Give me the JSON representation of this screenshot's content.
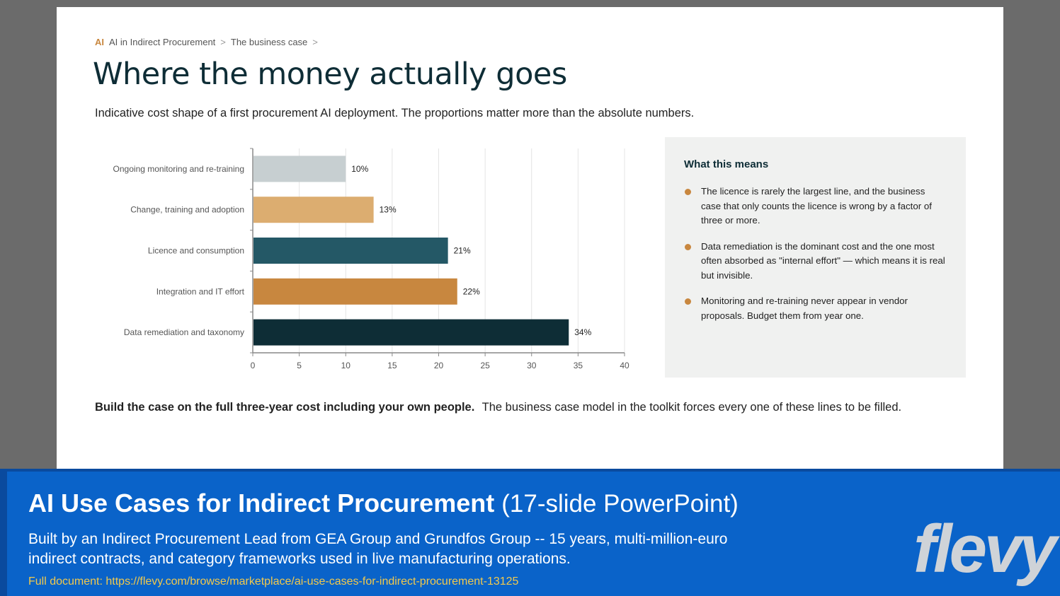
{
  "breadcrumb": {
    "tag": "AI",
    "items": [
      "AI in Indirect Procurement",
      "The business case"
    ],
    "separator": ">"
  },
  "title": "Where the money actually goes",
  "subtitle": "Indicative cost shape of a first procurement AI deployment. The proportions matter more than the absolute numbers.",
  "chart_data": {
    "type": "bar",
    "orientation": "horizontal",
    "categories": [
      "Ongoing monitoring and re-training",
      "Change, training and adoption",
      "Licence and consumption",
      "Integration and IT effort",
      "Data remediation and taxonomy"
    ],
    "values": [
      10,
      13,
      21,
      22,
      34
    ],
    "value_labels": [
      "10%",
      "13%",
      "21%",
      "22%",
      "34%"
    ],
    "colors": [
      "#c7cfd1",
      "#dcad70",
      "#245866",
      "#c8873f",
      "#0e2d36"
    ],
    "xlim": [
      0,
      40
    ],
    "xticks": [
      0,
      5,
      10,
      15,
      20,
      25,
      30,
      35,
      40
    ],
    "grid": true,
    "title": "",
    "xlabel": "",
    "ylabel": ""
  },
  "panel": {
    "title": "What this means",
    "bullets": [
      "The licence is rarely the largest line, and the business case that only counts the licence is wrong by a factor of three or more.",
      "Data remediation is the dominant cost and the one most often absorbed as \"internal effort\" — which means it is real but invisible.",
      "Monitoring and re-training never appear in vendor proposals. Budget them from year one."
    ]
  },
  "footnote": {
    "bold": "Build the case on the full three-year cost including your own people.",
    "text": "The business case model in the toolkit forces every one of these lines to be filled."
  },
  "banner": {
    "title_strong": "AI Use Cases for Indirect Procurement",
    "title_light": "(17-slide PowerPoint)",
    "description": "Built by an Indirect Procurement Lead from GEA Group and Grundfos Group -- 15 years, multi-million-euro indirect contracts, and category frameworks used in live manufacturing operations.",
    "link": "Full document: https://flevy.com/browse/marketplace/ai-use-cases-for-indirect-procurement-13125",
    "logo_text": "flevy"
  },
  "colors": {
    "accent": "#c8873f",
    "title": "#0e2d36",
    "banner": "#0a63c9",
    "link": "#f2c94c"
  }
}
